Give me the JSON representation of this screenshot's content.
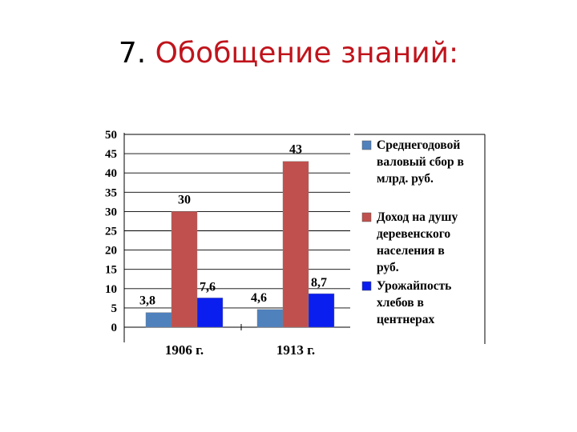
{
  "slide": {
    "title_number": "7.",
    "title_text": "Обобщение знаний:"
  },
  "chart_data": {
    "type": "bar",
    "categories": [
      "1906 г.",
      "1913 г."
    ],
    "ylim": [
      0,
      50
    ],
    "yticks": [
      "0",
      "5",
      "10",
      "15",
      "20",
      "25",
      "30",
      "35",
      "40",
      "45",
      "50"
    ],
    "grid": true,
    "legend_position": "right",
    "series": [
      {
        "name": "Среднегодовой валовый сбор в млрд. руб.",
        "legend_lines": [
          "Среднегодовой",
          "валовый сбор в",
          "млрд. руб."
        ],
        "color": "#4f81bd",
        "values": [
          3.8,
          4.6
        ],
        "labels": [
          "3,8",
          "4,6"
        ]
      },
      {
        "name": "Доход на душу деревенского населения в руб.",
        "legend_lines": [
          "Доход на душу",
          "деревенского",
          "населения в",
          "руб."
        ],
        "color": "#c0504d",
        "values": [
          30,
          43
        ],
        "labels": [
          "30",
          "43"
        ]
      },
      {
        "name": "Урожайпость хлебов в центнерах",
        "legend_lines": [
          "Урожайпость",
          "хлебов в",
          "центнерах"
        ],
        "color": "#0a1ef0",
        "values": [
          7.6,
          8.7
        ],
        "labels": [
          "7,6",
          "8,7"
        ]
      }
    ]
  }
}
